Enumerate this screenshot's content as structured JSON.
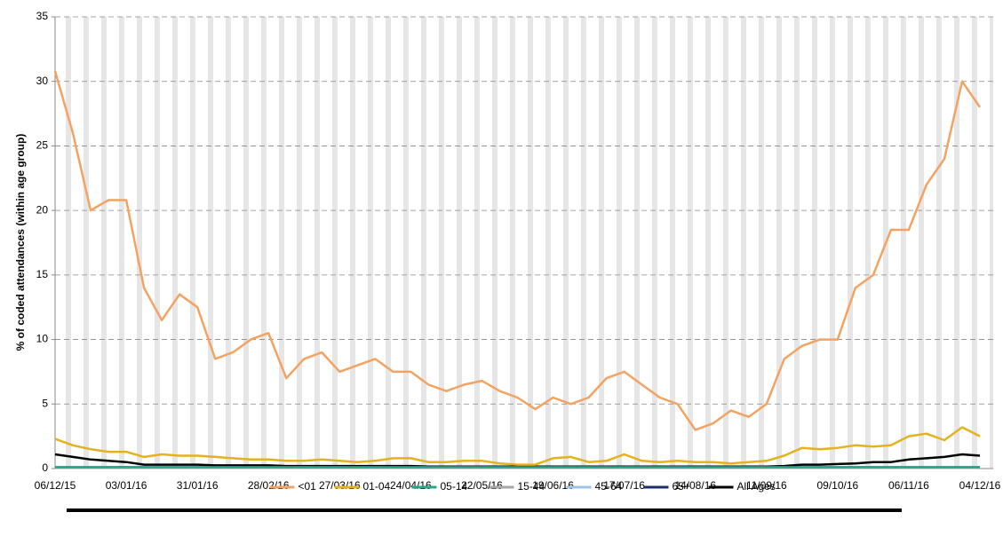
{
  "chart_data": {
    "type": "line",
    "y_label": "% of coded attendances (within age group)",
    "x": [
      "06/12/15",
      "13/12/15",
      "20/12/15",
      "27/12/15",
      "03/01/16",
      "10/01/16",
      "17/01/16",
      "24/01/16",
      "31/01/16",
      "07/02/16",
      "14/02/16",
      "21/02/16",
      "28/02/16",
      "06/03/16",
      "13/03/16",
      "20/03/16",
      "27/03/16",
      "03/04/16",
      "10/04/16",
      "17/04/16",
      "24/04/16",
      "01/05/16",
      "08/05/16",
      "15/05/16",
      "22/05/16",
      "29/05/16",
      "05/06/16",
      "12/06/16",
      "19/06/16",
      "26/06/16",
      "03/07/16",
      "10/07/16",
      "17/07/16",
      "24/07/16",
      "31/07/16",
      "07/08/16",
      "14/08/16",
      "21/08/16",
      "28/08/16",
      "04/09/16",
      "11/09/16",
      "18/09/16",
      "25/09/16",
      "02/10/16",
      "09/10/16",
      "16/10/16",
      "23/10/16",
      "30/10/16",
      "06/11/16",
      "13/11/16",
      "20/11/16",
      "27/11/16",
      "04/12/16"
    ],
    "xticks": [
      "06/12/15",
      "03/01/16",
      "31/01/16",
      "28/02/16",
      "27/03/16",
      "24/04/16",
      "22/05/16",
      "19/06/16",
      "17/07/16",
      "14/08/16",
      "11/09/16",
      "09/10/16",
      "06/11/16",
      "04/12/16"
    ],
    "ylim": [
      0,
      35
    ],
    "yticks": [
      0,
      5,
      10,
      15,
      20,
      25,
      30,
      35
    ],
    "grid": true,
    "series": [
      {
        "name": "<01",
        "color": "#f4a261",
        "values": [
          30.8,
          26,
          20,
          20.8,
          20.8,
          14,
          11.5,
          13.5,
          12.5,
          8.5,
          9,
          10,
          10.5,
          7,
          8.5,
          9,
          7.5,
          8,
          8.5,
          7.5,
          7.5,
          6.5,
          6,
          6.5,
          6.8,
          6,
          5.5,
          4.6,
          5.5,
          5,
          5.5,
          7,
          7.5,
          6.5,
          5.5,
          5,
          3,
          3.5,
          4.5,
          4,
          5,
          8.5,
          9.5,
          10,
          10,
          14,
          15,
          18.5,
          18.5,
          22,
          24,
          30,
          28
        ]
      },
      {
        "name": "01-04",
        "color": "#e3b21c",
        "values": [
          2.3,
          1.8,
          1.5,
          1.3,
          1.3,
          0.9,
          1.1,
          1,
          1,
          0.9,
          0.8,
          0.7,
          0.7,
          0.6,
          0.6,
          0.7,
          0.6,
          0.5,
          0.6,
          0.8,
          0.8,
          0.5,
          0.5,
          0.6,
          0.6,
          0.4,
          0.3,
          0.3,
          0.8,
          0.9,
          0.5,
          0.6,
          1.1,
          0.6,
          0.5,
          0.6,
          0.5,
          0.5,
          0.4,
          0.5,
          0.6,
          1,
          1.6,
          1.5,
          1.6,
          1.8,
          1.7,
          1.8,
          2.5,
          2.7,
          2.2,
          3.2,
          2.5
        ]
      },
      {
        "name": "05-14",
        "color": "#2aa58a",
        "values": [
          0.1,
          0.1,
          0.1,
          0.1,
          0.1,
          0.1,
          0.1,
          0.1,
          0.1,
          0.1,
          0.1,
          0.1,
          0.1,
          0.1,
          0.1,
          0.1,
          0.1,
          0.1,
          0.1,
          0.1,
          0.1,
          0.1,
          0.1,
          0.1,
          0.1,
          0.1,
          0.1,
          0.1,
          0.1,
          0.1,
          0.1,
          0.1,
          0.1,
          0.1,
          0.1,
          0.1,
          0.1,
          0.1,
          0.1,
          0.1,
          0.1,
          0.1,
          0.1,
          0.1,
          0.1,
          0.1,
          0.1,
          0.1,
          0.1,
          0.1,
          0.1,
          0.1,
          0.1
        ]
      },
      {
        "name": "15-44",
        "color": "#a6a6a6",
        "values": [
          0.05,
          0.05,
          0.05,
          0.05,
          0.05,
          0.05,
          0.05,
          0.05,
          0.05,
          0.05,
          0.05,
          0.05,
          0.05,
          0.05,
          0.05,
          0.05,
          0.05,
          0.05,
          0.05,
          0.05,
          0.05,
          0.05,
          0.05,
          0.05,
          0.05,
          0.05,
          0.05,
          0.05,
          0.05,
          0.05,
          0.05,
          0.05,
          0.05,
          0.05,
          0.05,
          0.05,
          0.05,
          0.05,
          0.05,
          0.05,
          0.05,
          0.05,
          0.05,
          0.05,
          0.05,
          0.05,
          0.05,
          0.05,
          0.05,
          0.05,
          0.05,
          0.05,
          0.05
        ]
      },
      {
        "name": "45-64",
        "color": "#9dc3e6",
        "values": [
          0.05,
          0.05,
          0.05,
          0.05,
          0.05,
          0.05,
          0.05,
          0.05,
          0.05,
          0.05,
          0.05,
          0.05,
          0.05,
          0.05,
          0.05,
          0.05,
          0.05,
          0.05,
          0.05,
          0.05,
          0.05,
          0.05,
          0.05,
          0.05,
          0.05,
          0.05,
          0.05,
          0.05,
          0.05,
          0.05,
          0.05,
          0.05,
          0.05,
          0.05,
          0.05,
          0.05,
          0.05,
          0.05,
          0.05,
          0.05,
          0.05,
          0.05,
          0.05,
          0.05,
          0.05,
          0.05,
          0.05,
          0.05,
          0.05,
          0.05,
          0.05,
          0.05,
          0.05
        ]
      },
      {
        "name": "65+",
        "color": "#1f2d6b",
        "values": [
          0.1,
          0.1,
          0.1,
          0.1,
          0.1,
          0.1,
          0.1,
          0.1,
          0.1,
          0.1,
          0.1,
          0.1,
          0.1,
          0.1,
          0.1,
          0.1,
          0.1,
          0.1,
          0.1,
          0.1,
          0.1,
          0.1,
          0.1,
          0.1,
          0.1,
          0.1,
          0.1,
          0.1,
          0.1,
          0.1,
          0.1,
          0.1,
          0.1,
          0.1,
          0.1,
          0.1,
          0.1,
          0.1,
          0.1,
          0.1,
          0.1,
          0.1,
          0.1,
          0.1,
          0.1,
          0.1,
          0.1,
          0.1,
          0.1,
          0.1,
          0.1,
          0.1,
          0.1
        ]
      },
      {
        "name": "All Ages",
        "color": "#000000",
        "values": [
          1.1,
          0.9,
          0.7,
          0.6,
          0.5,
          0.3,
          0.3,
          0.3,
          0.3,
          0.25,
          0.25,
          0.25,
          0.25,
          0.2,
          0.2,
          0.2,
          0.2,
          0.2,
          0.2,
          0.2,
          0.2,
          0.15,
          0.15,
          0.15,
          0.15,
          0.15,
          0.15,
          0.15,
          0.15,
          0.15,
          0.15,
          0.15,
          0.15,
          0.15,
          0.15,
          0.15,
          0.15,
          0.15,
          0.15,
          0.15,
          0.15,
          0.2,
          0.3,
          0.3,
          0.35,
          0.4,
          0.5,
          0.5,
          0.7,
          0.8,
          0.9,
          1.1,
          1
        ]
      }
    ]
  }
}
